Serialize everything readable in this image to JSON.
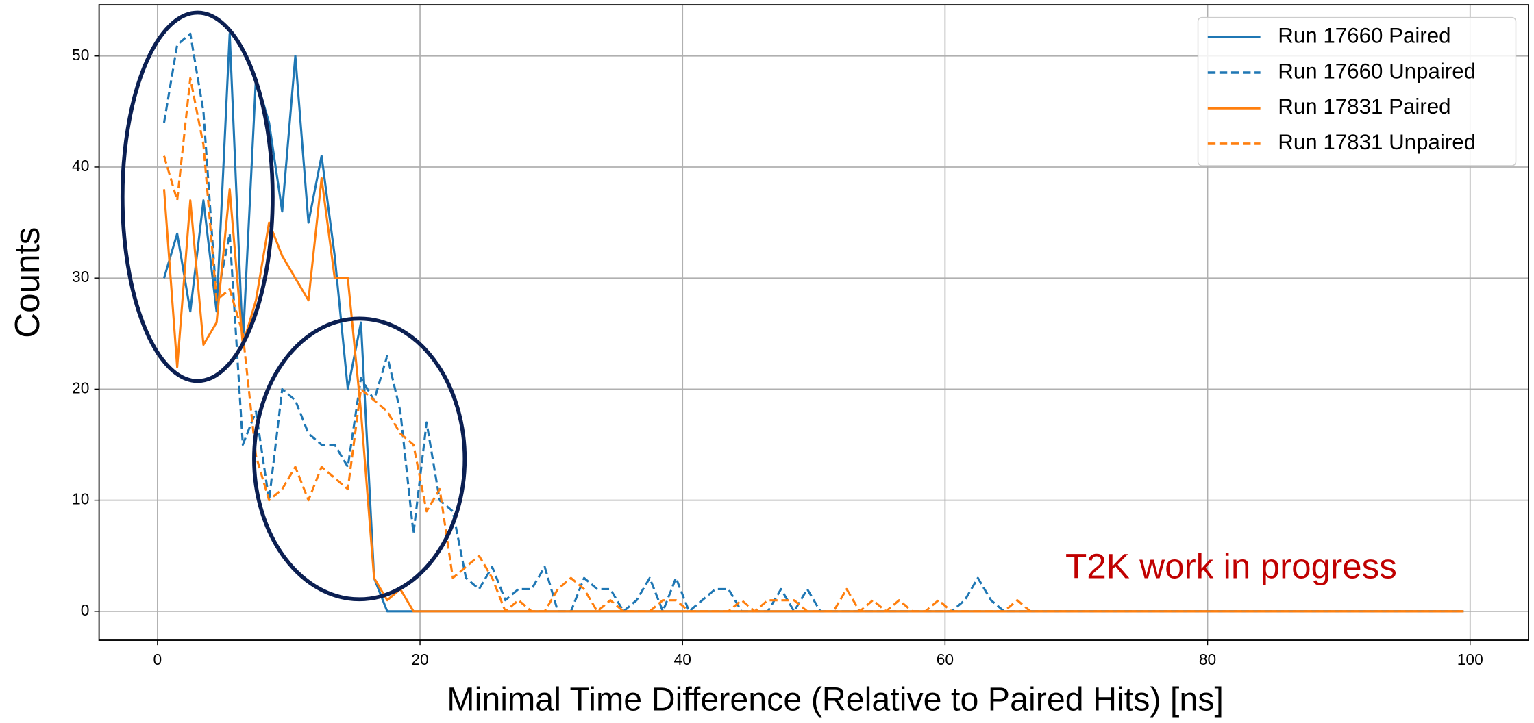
{
  "chart_data": {
    "type": "line",
    "xlabel": "Minimal Time Difference (Relative to Paired Hits) [ns]",
    "ylabel": "Counts",
    "annotation": "T2K work in progress",
    "annotation_color": "#c00000",
    "grid": true,
    "legend": "upper right",
    "xlim": [
      -4.45,
      104.45
    ],
    "ylim": [
      -2.6,
      54.6
    ],
    "xticks": [
      0,
      20,
      40,
      60,
      80,
      100
    ],
    "yticks": [
      0,
      10,
      20,
      30,
      40,
      50
    ],
    "x": [
      0.5,
      1.5,
      2.5,
      3.5,
      4.5,
      5.5,
      6.5,
      7.5,
      8.5,
      9.5,
      10.5,
      11.5,
      12.5,
      13.5,
      14.5,
      15.5,
      16.5,
      17.5,
      18.5,
      19.5,
      20.5,
      21.5,
      22.5,
      23.5,
      24.5,
      25.5,
      26.5,
      27.5,
      28.5,
      29.5,
      30.5,
      31.5,
      32.5,
      33.5,
      34.5,
      35.5,
      36.5,
      37.5,
      38.5,
      39.5,
      40.5,
      41.5,
      42.5,
      43.5,
      44.5,
      45.5,
      46.5,
      47.5,
      48.5,
      49.5,
      50.5,
      51.5,
      52.5,
      53.5,
      54.5,
      55.5,
      56.5,
      57.5,
      58.5,
      59.5,
      60.5,
      61.5,
      62.5,
      63.5,
      64.5,
      65.5,
      66.5,
      67.5,
      68.5,
      69.5,
      70.5,
      71.5,
      72.5,
      73.5,
      74.5,
      75.5,
      76.5,
      77.5,
      78.5,
      79.5,
      80.5,
      81.5,
      82.5,
      83.5,
      84.5,
      85.5,
      86.5,
      87.5,
      88.5,
      89.5,
      90.5,
      91.5,
      92.5,
      93.5,
      94.5,
      95.5,
      96.5,
      97.5,
      98.5,
      99.5
    ],
    "series": [
      {
        "name": "Run 17660 Paired",
        "color": "#1f77b4",
        "dashed": false,
        "values": [
          30,
          34,
          27,
          37,
          27,
          52,
          24,
          48,
          44,
          36,
          50,
          35,
          41,
          32,
          20,
          26,
          3,
          0,
          0,
          0,
          0,
          0,
          0,
          0,
          0,
          0,
          0,
          0,
          0,
          0,
          0,
          0,
          0,
          0,
          0,
          0,
          0,
          0,
          0,
          0,
          0,
          0,
          0,
          0,
          0,
          0,
          0,
          0,
          0,
          0,
          0,
          0,
          0,
          0,
          0,
          0,
          0,
          0,
          0,
          0,
          0,
          0,
          0,
          0,
          0,
          0,
          0,
          0,
          0,
          0,
          0,
          0,
          0,
          0,
          0,
          0,
          0,
          0,
          0,
          0,
          0,
          0,
          0,
          0,
          0,
          0,
          0,
          0,
          0,
          0,
          0,
          0,
          0,
          0,
          0,
          0,
          0,
          0,
          0,
          0
        ]
      },
      {
        "name": "Run 17660 Unpaired",
        "color": "#1f77b4",
        "dashed": true,
        "values": [
          44,
          51,
          52,
          45,
          28,
          34,
          15,
          18,
          10,
          20,
          19,
          16,
          15,
          15,
          13,
          21,
          19,
          23,
          18,
          7,
          17,
          10,
          9,
          3,
          2,
          4,
          1,
          2,
          2,
          4,
          0,
          0,
          3,
          2,
          2,
          0,
          1,
          3,
          0,
          3,
          0,
          1,
          2,
          2,
          0,
          0,
          0,
          2,
          0,
          2,
          0,
          0,
          0,
          0,
          0,
          0,
          0,
          0,
          0,
          0,
          0,
          1,
          3,
          1,
          0,
          0,
          0,
          0,
          0,
          0,
          0,
          0,
          0,
          0,
          0,
          0,
          0,
          0,
          0,
          0,
          0,
          0,
          0,
          0,
          0,
          0,
          0,
          0,
          0,
          0,
          0,
          0,
          0,
          0,
          0,
          0,
          0,
          0,
          0,
          0
        ]
      },
      {
        "name": "Run 17831 Paired",
        "color": "#ff7f0e",
        "dashed": false,
        "values": [
          38,
          22,
          37,
          24,
          26,
          38,
          24,
          28,
          35,
          32,
          30,
          28,
          39,
          30,
          30,
          18,
          3,
          1,
          2,
          0,
          0,
          0,
          0,
          0,
          0,
          0,
          0,
          0,
          0,
          0,
          0,
          0,
          0,
          0,
          0,
          0,
          0,
          0,
          0,
          0,
          0,
          0,
          0,
          0,
          0,
          0,
          0,
          0,
          0,
          0,
          0,
          0,
          0,
          0,
          0,
          0,
          0,
          0,
          0,
          0,
          0,
          0,
          0,
          0,
          0,
          0,
          0,
          0,
          0,
          0,
          0,
          0,
          0,
          0,
          0,
          0,
          0,
          0,
          0,
          0,
          0,
          0,
          0,
          0,
          0,
          0,
          0,
          0,
          0,
          0,
          0,
          0,
          0,
          0,
          0,
          0,
          0,
          0,
          0,
          0
        ]
      },
      {
        "name": "Run 17831 Unpaired",
        "color": "#ff7f0e",
        "dashed": true,
        "values": [
          41,
          37,
          48,
          42,
          28,
          29,
          25,
          14,
          10,
          11,
          13,
          10,
          13,
          12,
          11,
          20,
          19,
          18,
          16,
          15,
          9,
          11,
          3,
          4,
          5,
          3,
          0,
          1,
          0,
          0,
          2,
          3,
          2,
          0,
          1,
          0,
          0,
          0,
          1,
          1,
          0,
          0,
          0,
          0,
          1,
          0,
          1,
          1,
          1,
          0,
          0,
          0,
          2,
          0,
          1,
          0,
          1,
          0,
          0,
          1,
          0,
          0,
          0,
          0,
          0,
          1,
          0,
          0,
          0,
          0,
          0,
          0,
          0,
          0,
          0,
          0,
          0,
          0,
          0,
          0,
          0,
          0,
          0,
          0,
          0,
          0,
          0,
          0,
          0,
          0,
          0,
          0,
          0,
          0,
          0,
          0,
          0,
          0,
          0,
          0
        ]
      }
    ]
  }
}
